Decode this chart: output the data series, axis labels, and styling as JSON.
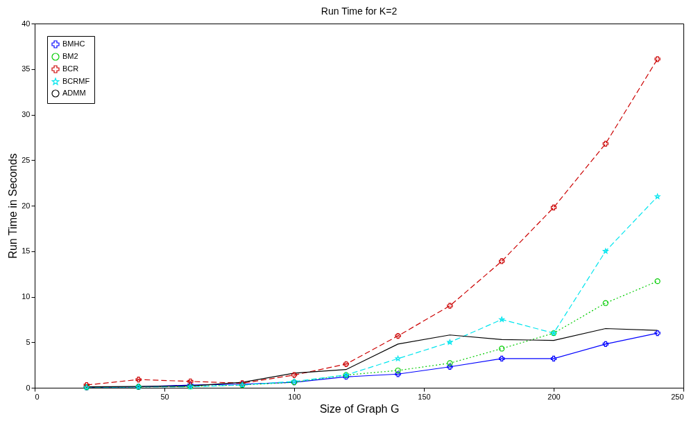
{
  "chart_data": {
    "type": "line",
    "title": "Run Time for K=2",
    "xlabel": "Size of Graph G",
    "ylabel": "Run Time in Seconds",
    "x": [
      20,
      40,
      60,
      80,
      100,
      120,
      140,
      160,
      180,
      200,
      220,
      240
    ],
    "series": [
      {
        "name": "BMHC",
        "color": "#0000ff",
        "marker": "cross",
        "line_style": "solid",
        "values": [
          0.05,
          0.1,
          0.3,
          0.4,
          0.6,
          1.2,
          1.5,
          2.3,
          3.2,
          3.2,
          4.8,
          6.0
        ]
      },
      {
        "name": "BM2",
        "color": "#00cc00",
        "marker": "circle",
        "line_style": "dotted",
        "values": [
          0.05,
          0.1,
          0.15,
          0.3,
          0.6,
          1.4,
          1.9,
          2.7,
          4.3,
          6.0,
          9.3,
          11.7
        ]
      },
      {
        "name": "BCR",
        "color": "#cc0000",
        "marker": "cross",
        "line_style": "dashed",
        "values": [
          0.3,
          0.9,
          0.7,
          0.5,
          1.4,
          2.6,
          5.7,
          9.0,
          13.9,
          19.8,
          26.8,
          36.1
        ]
      },
      {
        "name": "BCRMF",
        "color": "#00e5ee",
        "marker": "star",
        "line_style": "dashed",
        "values": [
          0.05,
          0.1,
          0.1,
          0.3,
          0.7,
          1.4,
          3.2,
          5.0,
          7.5,
          6.0,
          15.0,
          21.0
        ]
      },
      {
        "name": "ADMM",
        "color": "#000000",
        "marker": "none",
        "line_style": "solid",
        "values": [
          0.1,
          0.15,
          0.2,
          0.6,
          1.6,
          2.0,
          4.8,
          5.8,
          5.3,
          5.2,
          6.5,
          6.3
        ]
      }
    ],
    "xlim": [
      0,
      250
    ],
    "xticks": [
      0,
      50,
      100,
      150,
      200,
      250
    ],
    "ylim": [
      0,
      40
    ],
    "yticks": [
      0,
      5,
      10,
      15,
      20,
      25,
      30,
      35,
      40
    ],
    "grid": false,
    "legend": "top left"
  }
}
